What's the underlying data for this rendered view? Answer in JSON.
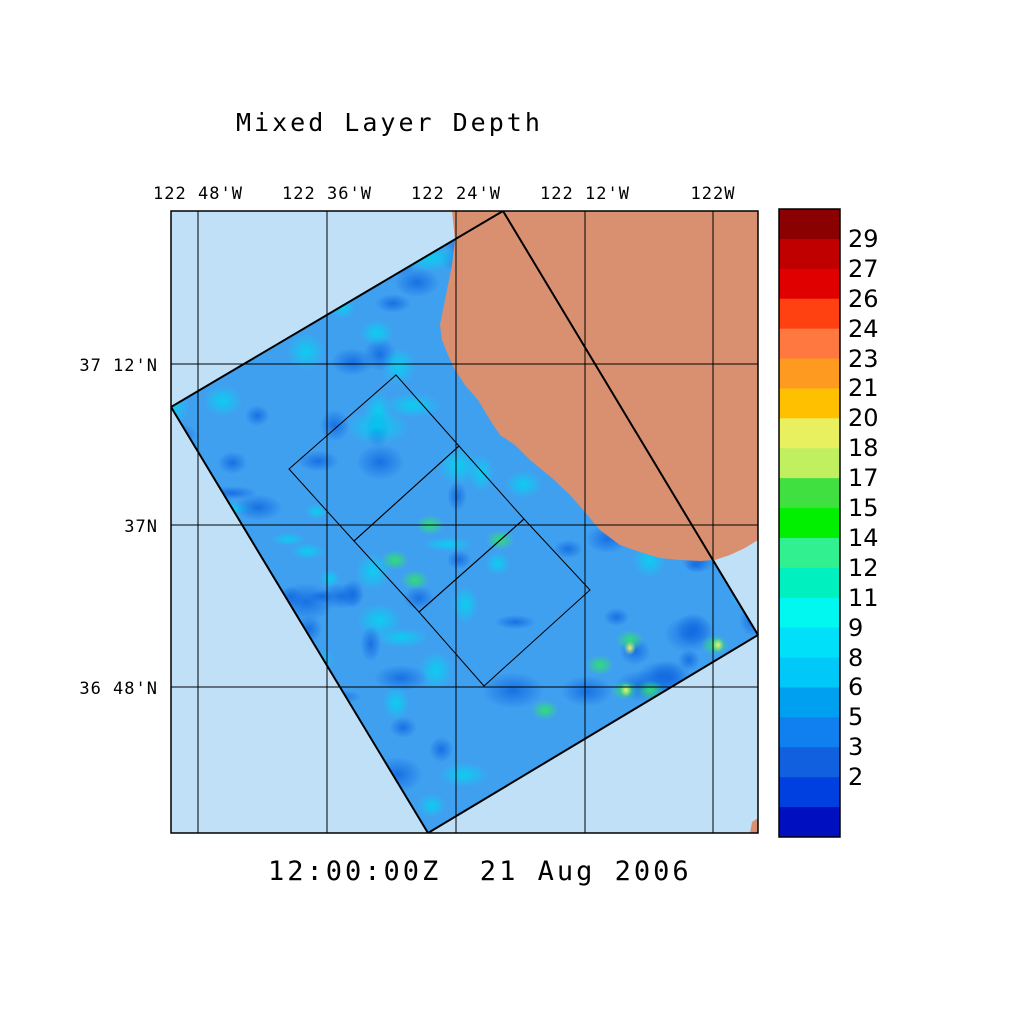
{
  "title": "Mixed Layer Depth",
  "timestamp": "12:00:00Z  21 Aug 2006",
  "lon_labels": [
    "122 48'W",
    "122 36'W",
    "122 24'W",
    "122 12'W",
    "122W"
  ],
  "lat_labels": [
    "37 12'N",
    "37N",
    "36 48'N"
  ],
  "colorbar": {
    "labels": [
      "29",
      "27",
      "26",
      "24",
      "23",
      "21",
      "20",
      "18",
      "17",
      "15",
      "14",
      "12",
      "11",
      "9",
      "8",
      "6",
      "5",
      "3",
      "2"
    ],
    "colors": [
      "#8b0000",
      "#c00000",
      "#e00000",
      "#ff4010",
      "#ff7840",
      "#ff9a20",
      "#ffc000",
      "#e8f060",
      "#c0f060",
      "#40e040",
      "#00f000",
      "#30f090",
      "#00f0c0",
      "#00f8f0",
      "#00e0f8",
      "#00c8f8",
      "#00a0f0",
      "#1080f0",
      "#1060e0",
      "#0040e0",
      "#0010c0"
    ]
  },
  "colors": {
    "ocean": "#c0e0f8",
    "land": "#d99070",
    "field_base": "#40a0f0"
  }
}
